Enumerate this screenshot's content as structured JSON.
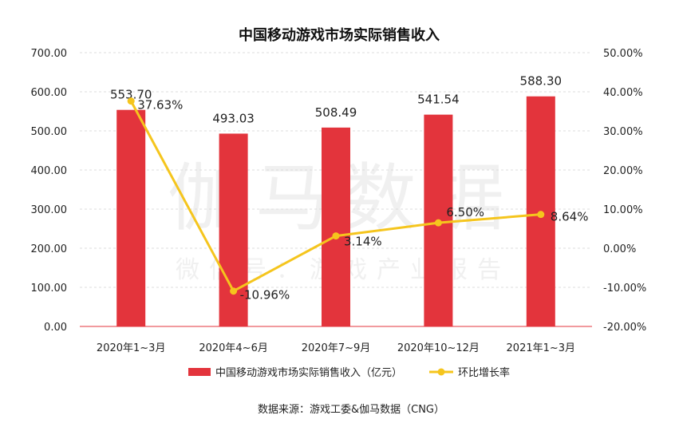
{
  "chart_data": {
    "type": "bar",
    "title": "中国移动游戏市场实际销售收入",
    "categories": [
      "2020年1~3月",
      "2020年4~6月",
      "2020年7~9月",
      "2020年10~12月",
      "2021年1~3月"
    ],
    "series": [
      {
        "name": "中国移动游戏市场实际销售收入（亿元）",
        "type": "bar",
        "axis": "left",
        "color": "#e3343c",
        "values": [
          553.7,
          493.03,
          508.49,
          541.54,
          588.3
        ],
        "labels": [
          "553.70",
          "493.03",
          "508.49",
          "541.54",
          "588.30"
        ]
      },
      {
        "name": "环比增长率",
        "type": "line",
        "axis": "right",
        "color": "#f5c51d",
        "values": [
          37.63,
          -10.96,
          3.14,
          6.5,
          8.64
        ],
        "labels": [
          "37.63%",
          "-10.96%",
          "3.14%",
          "6.50%",
          "8.64%"
        ]
      }
    ],
    "y_left": {
      "ylim": [
        0,
        700
      ],
      "ticks": [
        0,
        100,
        200,
        300,
        400,
        500,
        600,
        700
      ],
      "tick_labels": [
        "0.00",
        "100.00",
        "200.00",
        "300.00",
        "400.00",
        "500.00",
        "600.00",
        "700.00"
      ]
    },
    "y_right": {
      "ylim": [
        -20,
        50
      ],
      "ticks": [
        -20,
        -10,
        0,
        10,
        20,
        30,
        40,
        50
      ],
      "tick_labels": [
        "-20.00%",
        "-10.00%",
        "0.00%",
        "10.00%",
        "20.00%",
        "30.00%",
        "40.00%",
        "50.00%"
      ]
    },
    "grid": true,
    "legend_position": "bottom",
    "watermark": [
      "伽马数据",
      "微信号：游戏产业报告"
    ],
    "source": "数据来源：游戏工委&伽马数据（CNG）"
  }
}
